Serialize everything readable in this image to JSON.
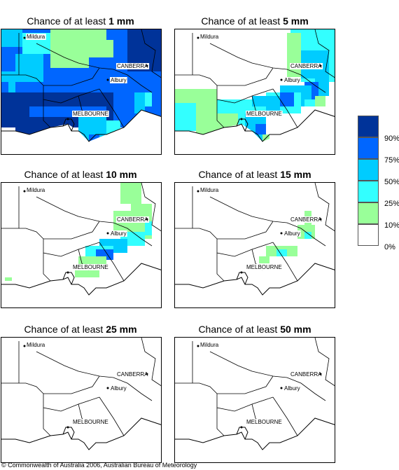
{
  "panels": [
    {
      "id": "p1",
      "title_prefix": "Chance of at least ",
      "threshold": "1 mm"
    },
    {
      "id": "p5",
      "title_prefix": "Chance of at least ",
      "threshold": "5 mm"
    },
    {
      "id": "p10",
      "title_prefix": "Chance of at least ",
      "threshold": "10 mm"
    },
    {
      "id": "p15",
      "title_prefix": "Chance of at least ",
      "threshold": "15 mm"
    },
    {
      "id": "p25",
      "title_prefix": "Chance of at least ",
      "threshold": "25 mm"
    },
    {
      "id": "p50",
      "title_prefix": "Chance of at least ",
      "threshold": "50 mm"
    }
  ],
  "cities": {
    "mildura": "Mildura",
    "canberra": "CANBERRA",
    "albury": "Albury",
    "melbourne": "MELBOURNE"
  },
  "legend": {
    "labels": [
      "90%",
      "75%",
      "50%",
      "25%",
      "10%",
      "0%"
    ],
    "colors": [
      "#003399",
      "#0066ff",
      "#00ccff",
      "#33ffff",
      "#99ff99",
      "#ffffff"
    ]
  },
  "copyright": "© Commonwealth of Australia 2006, Australian Bureau of Meteorology"
}
